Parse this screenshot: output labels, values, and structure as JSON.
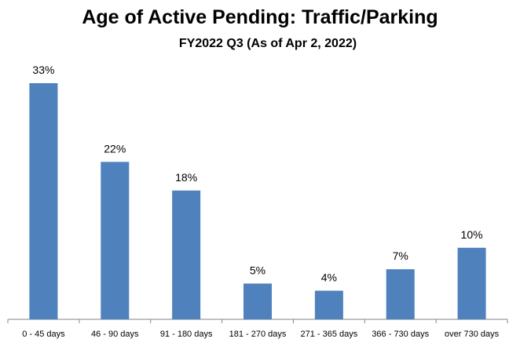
{
  "chart_data": {
    "type": "bar",
    "title": "Age of Active Pending: Traffic/Parking",
    "subtitle": "FY2022 Q3 (As of Apr 2, 2022)",
    "categories": [
      "0 - 45 days",
      "46 - 90 days",
      "91 - 180 days",
      "181 - 270 days",
      "271 - 365 days",
      "366 - 730 days",
      "over 730 days"
    ],
    "values": [
      33,
      22,
      18,
      5,
      4,
      7,
      10
    ],
    "value_labels": [
      "33%",
      "22%",
      "18%",
      "5%",
      "4%",
      "7%",
      "10%"
    ],
    "ylim": [
      0,
      33
    ],
    "xlabel": "",
    "ylabel": "",
    "grid": false,
    "legend": "none",
    "bar_color": "#4f81bd"
  }
}
